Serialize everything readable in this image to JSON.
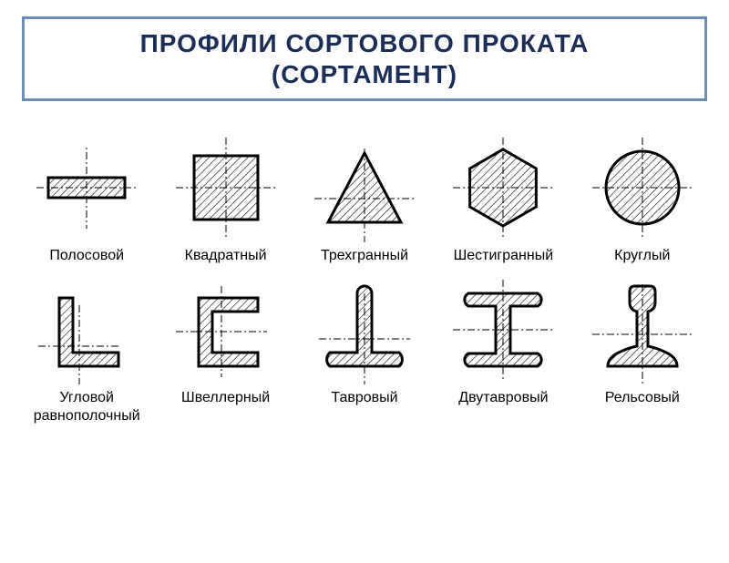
{
  "title": {
    "line1": "ПРОФИЛИ СОРТОВОГО ПРОКАТА",
    "line2": "(СОРТАМЕНТ)",
    "border_color": "#6a8db5",
    "text_color": "#1b2e57",
    "fontsize": 28
  },
  "diagram": {
    "type": "infographic",
    "rows": 2,
    "cols": 5,
    "hatch_angle": 45,
    "hatch_spacing": 6,
    "stroke_color": "#000000",
    "stroke_width": 3,
    "hatch_width": 1.2,
    "background_color": "#ffffff",
    "label_fontsize": 16,
    "label_fontweight": "normal",
    "shapes": {
      "s0": "strip",
      "s1": "square",
      "s2": "triangle",
      "s3": "hexagon",
      "s4": "circle",
      "s5": "angle",
      "s6": "channel",
      "s7": "tee",
      "s8": "ibeam",
      "s9": "rail"
    },
    "labels": {
      "s0": "Полосовой",
      "s1": "Квадратный",
      "s2": "Трехгранный",
      "s3": "Шестигранный",
      "s4": "Круглый",
      "s5": "Угловой равнополочный",
      "s6": "Швеллерный",
      "s7": "Тавровый",
      "s8": "Двутавровый",
      "s9": "Рельсовый"
    }
  }
}
